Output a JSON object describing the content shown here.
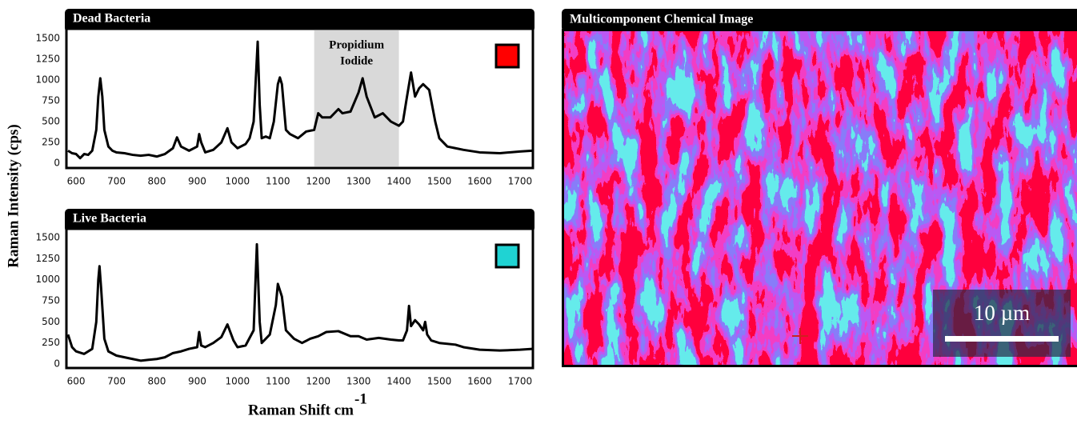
{
  "chart_data": [
    {
      "type": "line",
      "title": "Dead Bacteria",
      "x": [
        580,
        590,
        600,
        610,
        620,
        630,
        640,
        650,
        655,
        660,
        665,
        670,
        680,
        690,
        700,
        720,
        740,
        760,
        780,
        800,
        820,
        840,
        850,
        860,
        880,
        900,
        905,
        910,
        920,
        940,
        960,
        975,
        985,
        1000,
        1020,
        1030,
        1040,
        1050,
        1055,
        1060,
        1070,
        1080,
        1090,
        1100,
        1105,
        1110,
        1120,
        1130,
        1150,
        1170,
        1190,
        1200,
        1210,
        1230,
        1250,
        1260,
        1280,
        1300,
        1310,
        1320,
        1340,
        1360,
        1380,
        1400,
        1410,
        1420,
        1430,
        1440,
        1450,
        1460,
        1475,
        1490,
        1500,
        1520,
        1540,
        1560,
        1600,
        1650,
        1700,
        1730
      ],
      "series": [
        {
          "color": "#000000",
          "values": [
            150,
            120,
            110,
            60,
            110,
            100,
            150,
            400,
            800,
            1020,
            800,
            400,
            200,
            150,
            130,
            120,
            100,
            90,
            100,
            80,
            110,
            180,
            310,
            200,
            150,
            200,
            350,
            250,
            130,
            160,
            250,
            420,
            250,
            180,
            230,
            300,
            500,
            1460,
            700,
            300,
            320,
            300,
            500,
            950,
            1030,
            950,
            400,
            350,
            300,
            380,
            400,
            600,
            550,
            550,
            650,
            600,
            620,
            850,
            1020,
            800,
            550,
            600,
            500,
            450,
            500,
            800,
            1090,
            800,
            900,
            950,
            880,
            500,
            300,
            200,
            180,
            160,
            130,
            120,
            140,
            150
          ]
        }
      ],
      "xlim": [
        576,
        1732
      ],
      "ylim": [
        -58,
        1615
      ],
      "xticks": [
        600,
        700,
        800,
        900,
        1000,
        1100,
        1200,
        1300,
        1400,
        1500,
        1600,
        1700
      ],
      "yticks": [
        0,
        250,
        500,
        750,
        1000,
        1250,
        1500
      ],
      "highlight": {
        "label_lines": [
          "Propidium",
          "Iodide"
        ],
        "range": [
          1190,
          1400
        ]
      },
      "swatch_color": "#ff0000"
    },
    {
      "type": "line",
      "title": "Live Bacteria",
      "x": [
        580,
        590,
        600,
        620,
        640,
        650,
        655,
        658,
        662,
        670,
        680,
        700,
        720,
        740,
        760,
        780,
        800,
        820,
        840,
        860,
        880,
        900,
        905,
        910,
        920,
        940,
        960,
        975,
        990,
        1000,
        1020,
        1040,
        1048,
        1055,
        1060,
        1070,
        1080,
        1095,
        1100,
        1110,
        1120,
        1140,
        1160,
        1180,
        1200,
        1220,
        1250,
        1280,
        1300,
        1320,
        1350,
        1380,
        1400,
        1410,
        1420,
        1425,
        1430,
        1440,
        1450,
        1460,
        1465,
        1470,
        1480,
        1500,
        1540,
        1560,
        1600,
        1650,
        1700,
        1730
      ],
      "series": [
        {
          "color": "#000000",
          "values": [
            350,
            200,
            150,
            120,
            180,
            500,
            1000,
            1160,
            900,
            300,
            150,
            100,
            80,
            60,
            40,
            50,
            60,
            80,
            130,
            150,
            180,
            200,
            380,
            220,
            200,
            250,
            320,
            470,
            280,
            200,
            220,
            400,
            1420,
            500,
            250,
            300,
            350,
            700,
            950,
            800,
            400,
            300,
            250,
            300,
            330,
            380,
            390,
            330,
            330,
            290,
            310,
            290,
            280,
            280,
            400,
            690,
            450,
            520,
            470,
            400,
            500,
            350,
            280,
            250,
            230,
            200,
            170,
            160,
            170,
            180
          ]
        }
      ],
      "xlim": [
        576,
        1732
      ],
      "ylim": [
        -47,
        1604
      ],
      "xticks": [
        600,
        700,
        800,
        900,
        1000,
        1100,
        1200,
        1300,
        1400,
        1500,
        1600,
        1700
      ],
      "yticks": [
        0,
        250,
        500,
        750,
        1000,
        1250,
        1500
      ],
      "swatch_color": "#1fd3d3"
    }
  ],
  "y_label": "Raman Intensity (cps)",
  "x_label": "Raman Shift cm",
  "x_label_sup": "-1",
  "image": {
    "title": "Multicomponent Chemical Image",
    "scale_bar": "10 µm"
  }
}
